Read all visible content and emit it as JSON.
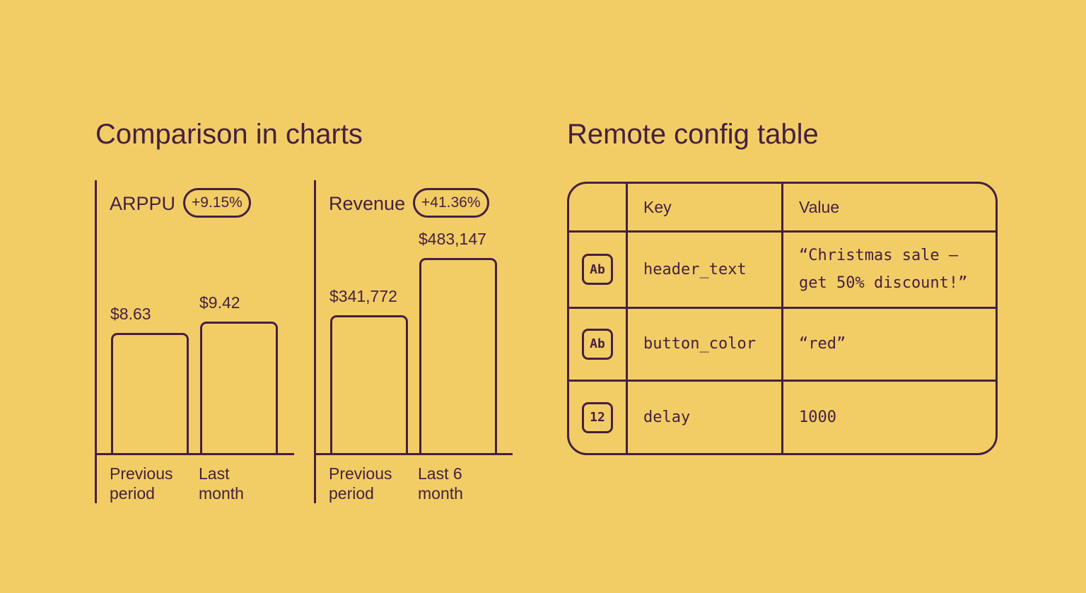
{
  "left_title": "Comparison in charts",
  "chart_data": [
    {
      "type": "bar",
      "title": "ARPPU",
      "badge": "+9.15%",
      "categories": [
        "Previous period",
        "Last month"
      ],
      "values": [
        8.63,
        9.42
      ],
      "value_labels": [
        "$8.63",
        "$9.42"
      ]
    },
    {
      "type": "bar",
      "title": "Revenue",
      "badge": "+41.36%",
      "categories": [
        "Previous period",
        "Last 6 month"
      ],
      "values": [
        341772,
        483147
      ],
      "value_labels": [
        "$341,772",
        "$483,147"
      ]
    }
  ],
  "table": {
    "title": "Remote config table",
    "columns": [
      "Key",
      "Value"
    ],
    "rows": [
      [
        "Ab",
        "header_text",
        "“Christmas sale — get 50% discount!”"
      ],
      [
        "Ab",
        "button_color",
        "“red”"
      ],
      [
        "12",
        "delay",
        "1000"
      ]
    ]
  }
}
